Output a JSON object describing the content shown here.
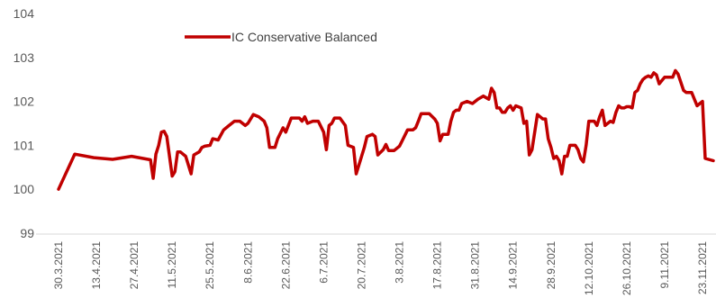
{
  "chart_data": {
    "type": "line",
    "ylim": [
      99,
      104
    ],
    "yticks": [
      99,
      100,
      101,
      102,
      103,
      104
    ],
    "grid": false,
    "legend_position": "top-left",
    "x_tick_labels": [
      "30.3.2021",
      "13.4.2021",
      "27.4.2021",
      "11.5.2021",
      "25.5.2021",
      "8.6.2021",
      "22.6.2021",
      "6.7.2021",
      "20.7.2021",
      "3.8.2021",
      "17.8.2021",
      "31.8.2021",
      "14.9.2021",
      "28.9.2021",
      "12.10.2021",
      "26.10.2021",
      "9.11.2021",
      "23.11.2021"
    ],
    "colors": {
      "series": "#c00000",
      "text": "#595959",
      "axis": "#d9d9d9"
    },
    "series": [
      {
        "name": "IC Conservative Balanced",
        "points": [
          [
            "30.3.2021",
            100.0
          ],
          [
            "5.4.2021",
            100.8
          ],
          [
            "12.4.2021",
            100.72
          ],
          [
            "19.4.2021",
            100.68
          ],
          [
            "26.4.2021",
            100.75
          ],
          [
            "3.5.2021",
            100.67
          ],
          [
            "4.5.2021",
            100.25
          ],
          [
            "5.5.2021",
            100.8
          ],
          [
            "6.5.2021",
            101.0
          ],
          [
            "7.5.2021",
            101.3
          ],
          [
            "8.5.2021",
            101.32
          ],
          [
            "9.5.2021",
            101.2
          ],
          [
            "11.5.2021",
            100.3
          ],
          [
            "12.5.2021",
            100.4
          ],
          [
            "13.5.2021",
            100.85
          ],
          [
            "14.5.2021",
            100.85
          ],
          [
            "16.5.2021",
            100.75
          ],
          [
            "18.5.2021",
            100.35
          ],
          [
            "19.5.2021",
            100.78
          ],
          [
            "21.5.2021",
            100.85
          ],
          [
            "22.5.2021",
            100.95
          ],
          [
            "23.5.2021",
            100.98
          ],
          [
            "25.5.2021",
            101.0
          ],
          [
            "26.5.2021",
            101.15
          ],
          [
            "28.5.2021",
            101.12
          ],
          [
            "30.5.2021",
            101.35
          ],
          [
            "1.6.2021",
            101.45
          ],
          [
            "3.6.2021",
            101.55
          ],
          [
            "5.6.2021",
            101.55
          ],
          [
            "7.6.2021",
            101.45
          ],
          [
            "8.6.2021",
            101.5
          ],
          [
            "10.6.2021",
            101.7
          ],
          [
            "12.6.2021",
            101.65
          ],
          [
            "14.6.2021",
            101.55
          ],
          [
            "15.6.2021",
            101.4
          ],
          [
            "16.6.2021",
            100.95
          ],
          [
            "18.6.2021",
            100.95
          ],
          [
            "19.6.2021",
            101.15
          ],
          [
            "21.6.2021",
            101.4
          ],
          [
            "22.6.2021",
            101.3
          ],
          [
            "24.6.2021",
            101.62
          ],
          [
            "27.6.2021",
            101.62
          ],
          [
            "28.6.2021",
            101.55
          ],
          [
            "29.6.2021",
            101.65
          ],
          [
            "30.6.2021",
            101.5
          ],
          [
            "2.7.2021",
            101.55
          ],
          [
            "4.7.2021",
            101.55
          ],
          [
            "6.7.2021",
            101.3
          ],
          [
            "7.7.2021",
            100.9
          ],
          [
            "8.7.2021",
            101.45
          ],
          [
            "9.7.2021",
            101.5
          ],
          [
            "10.7.2021",
            101.62
          ],
          [
            "12.7.2021",
            101.62
          ],
          [
            "14.7.2021",
            101.45
          ],
          [
            "15.7.2021",
            101.0
          ],
          [
            "17.7.2021",
            100.95
          ],
          [
            "18.7.2021",
            100.35
          ],
          [
            "19.7.2021",
            100.55
          ],
          [
            "21.7.2021",
            100.95
          ],
          [
            "22.7.2021",
            101.2
          ],
          [
            "24.7.2021",
            101.25
          ],
          [
            "25.7.2021",
            101.2
          ],
          [
            "26.7.2021",
            100.78
          ],
          [
            "28.7.2021",
            100.9
          ],
          [
            "29.7.2021",
            101.02
          ],
          [
            "30.7.2021",
            100.88
          ],
          [
            "1.8.2021",
            100.88
          ],
          [
            "3.8.2021",
            100.98
          ],
          [
            "4.8.2021",
            101.1
          ],
          [
            "6.8.2021",
            101.35
          ],
          [
            "8.8.2021",
            101.35
          ],
          [
            "9.8.2021",
            101.4
          ],
          [
            "10.8.2021",
            101.55
          ],
          [
            "11.8.2021",
            101.72
          ],
          [
            "14.8.2021",
            101.72
          ],
          [
            "16.8.2021",
            101.6
          ],
          [
            "17.8.2021",
            101.5
          ],
          [
            "18.8.2021",
            101.1
          ],
          [
            "19.8.2021",
            101.25
          ],
          [
            "21.8.2021",
            101.25
          ],
          [
            "22.8.2021",
            101.55
          ],
          [
            "23.8.2021",
            101.75
          ],
          [
            "24.8.2021",
            101.8
          ],
          [
            "25.8.2021",
            101.8
          ],
          [
            "26.8.2021",
            101.95
          ],
          [
            "28.8.2021",
            102.0
          ],
          [
            "30.8.2021",
            101.95
          ],
          [
            "1.9.2021",
            102.05
          ],
          [
            "3.9.2021",
            102.12
          ],
          [
            "5.9.2021",
            102.05
          ],
          [
            "6.9.2021",
            102.3
          ],
          [
            "7.9.2021",
            102.2
          ],
          [
            "8.9.2021",
            101.85
          ],
          [
            "9.9.2021",
            101.85
          ],
          [
            "10.9.2021",
            101.75
          ],
          [
            "11.9.2021",
            101.75
          ],
          [
            "12.9.2021",
            101.85
          ],
          [
            "13.9.2021",
            101.9
          ],
          [
            "14.9.2021",
            101.8
          ],
          [
            "15.9.2021",
            101.9
          ],
          [
            "17.9.2021",
            101.85
          ],
          [
            "18.9.2021",
            101.5
          ],
          [
            "19.9.2021",
            101.55
          ],
          [
            "20.9.2021",
            100.78
          ],
          [
            "21.9.2021",
            100.9
          ],
          [
            "22.9.2021",
            101.3
          ],
          [
            "23.9.2021",
            101.7
          ],
          [
            "24.9.2021",
            101.65
          ],
          [
            "25.9.2021",
            101.6
          ],
          [
            "26.9.2021",
            101.6
          ],
          [
            "27.9.2021",
            101.15
          ],
          [
            "28.9.2021",
            100.95
          ],
          [
            "29.9.2021",
            100.7
          ],
          [
            "30.9.2021",
            100.75
          ],
          [
            "1.10.2021",
            100.65
          ],
          [
            "2.10.2021",
            100.35
          ],
          [
            "3.10.2021",
            100.75
          ],
          [
            "4.10.2021",
            100.75
          ],
          [
            "5.10.2021",
            101.0
          ],
          [
            "7.10.2021",
            101.0
          ],
          [
            "8.10.2021",
            100.9
          ],
          [
            "9.10.2021",
            100.7
          ],
          [
            "10.10.2021",
            100.62
          ],
          [
            "11.10.2021",
            101.0
          ],
          [
            "12.10.2021",
            101.55
          ],
          [
            "14.10.2021",
            101.55
          ],
          [
            "15.10.2021",
            101.45
          ],
          [
            "16.10.2021",
            101.65
          ],
          [
            "17.10.2021",
            101.8
          ],
          [
            "18.10.2021",
            101.45
          ],
          [
            "19.10.2021",
            101.5
          ],
          [
            "20.10.2021",
            101.55
          ],
          [
            "21.10.2021",
            101.52
          ],
          [
            "22.10.2021",
            101.75
          ],
          [
            "23.10.2021",
            101.9
          ],
          [
            "24.10.2021",
            101.85
          ],
          [
            "25.10.2021",
            101.85
          ],
          [
            "26.10.2021",
            101.88
          ],
          [
            "27.10.2021",
            101.88
          ],
          [
            "28.10.2021",
            101.85
          ],
          [
            "29.10.2021",
            102.2
          ],
          [
            "30.10.2021",
            102.25
          ],
          [
            "31.10.2021",
            102.4
          ],
          [
            "1.11.2021",
            102.5
          ],
          [
            "2.11.2021",
            102.55
          ],
          [
            "3.11.2021",
            102.58
          ],
          [
            "4.11.2021",
            102.55
          ],
          [
            "5.11.2021",
            102.65
          ],
          [
            "6.11.2021",
            102.6
          ],
          [
            "7.11.2021",
            102.4
          ],
          [
            "9.11.2021",
            102.55
          ],
          [
            "12.11.2021",
            102.55
          ],
          [
            "13.11.2021",
            102.7
          ],
          [
            "14.11.2021",
            102.62
          ],
          [
            "16.11.2021",
            102.25
          ],
          [
            "17.11.2021",
            102.2
          ],
          [
            "19.11.2021",
            102.2
          ],
          [
            "21.11.2021",
            101.9
          ],
          [
            "22.11.2021",
            101.95
          ],
          [
            "23.11.2021",
            102.0
          ],
          [
            "24.11.2021",
            100.7
          ],
          [
            "27.11.2021",
            100.65
          ]
        ]
      }
    ]
  }
}
